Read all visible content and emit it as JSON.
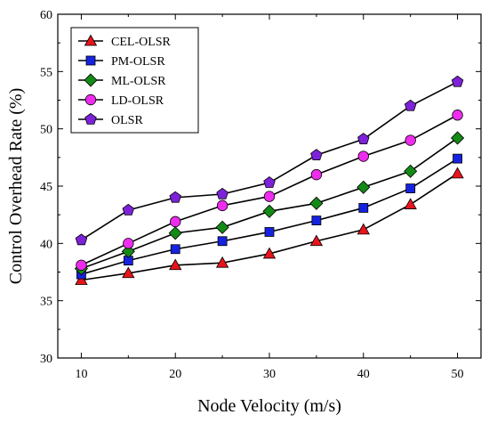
{
  "chart_data": {
    "type": "line",
    "xlabel": "Node Velocity (m/s)",
    "ylabel": "Control Overhead Rate (%)",
    "xlim": [
      7.5,
      52.5
    ],
    "ylim": [
      30,
      60
    ],
    "xticks": [
      10,
      20,
      30,
      40,
      50
    ],
    "yticks": [
      30,
      35,
      40,
      45,
      50,
      55,
      60
    ],
    "grid": false,
    "legend_position": "top-left",
    "x": [
      10,
      15,
      20,
      25,
      30,
      35,
      40,
      45,
      50
    ],
    "series": [
      {
        "name": "CEL-OLSR",
        "marker": "triangle",
        "color": "#e8141b",
        "values": [
          36.8,
          37.4,
          38.1,
          38.3,
          39.1,
          40.2,
          41.2,
          43.4,
          46.1
        ]
      },
      {
        "name": "PM-OLSR",
        "marker": "square",
        "color": "#1523e0",
        "values": [
          37.3,
          38.5,
          39.5,
          40.2,
          41.0,
          42.0,
          43.1,
          44.8,
          47.4
        ]
      },
      {
        "name": "ML-OLSR",
        "marker": "diamond",
        "color": "#148a16",
        "values": [
          37.8,
          39.3,
          40.9,
          41.4,
          42.8,
          43.5,
          44.9,
          46.3,
          49.2
        ]
      },
      {
        "name": "LD-OLSR",
        "marker": "circle",
        "color": "#ee2cee",
        "values": [
          38.1,
          40.0,
          41.9,
          43.3,
          44.1,
          46.0,
          47.6,
          49.0,
          51.2
        ]
      },
      {
        "name": "OLSR",
        "marker": "pentagon",
        "color": "#7d22d8",
        "values": [
          40.3,
          42.9,
          44.0,
          44.3,
          45.3,
          47.7,
          49.1,
          52.0,
          54.1
        ]
      }
    ]
  }
}
